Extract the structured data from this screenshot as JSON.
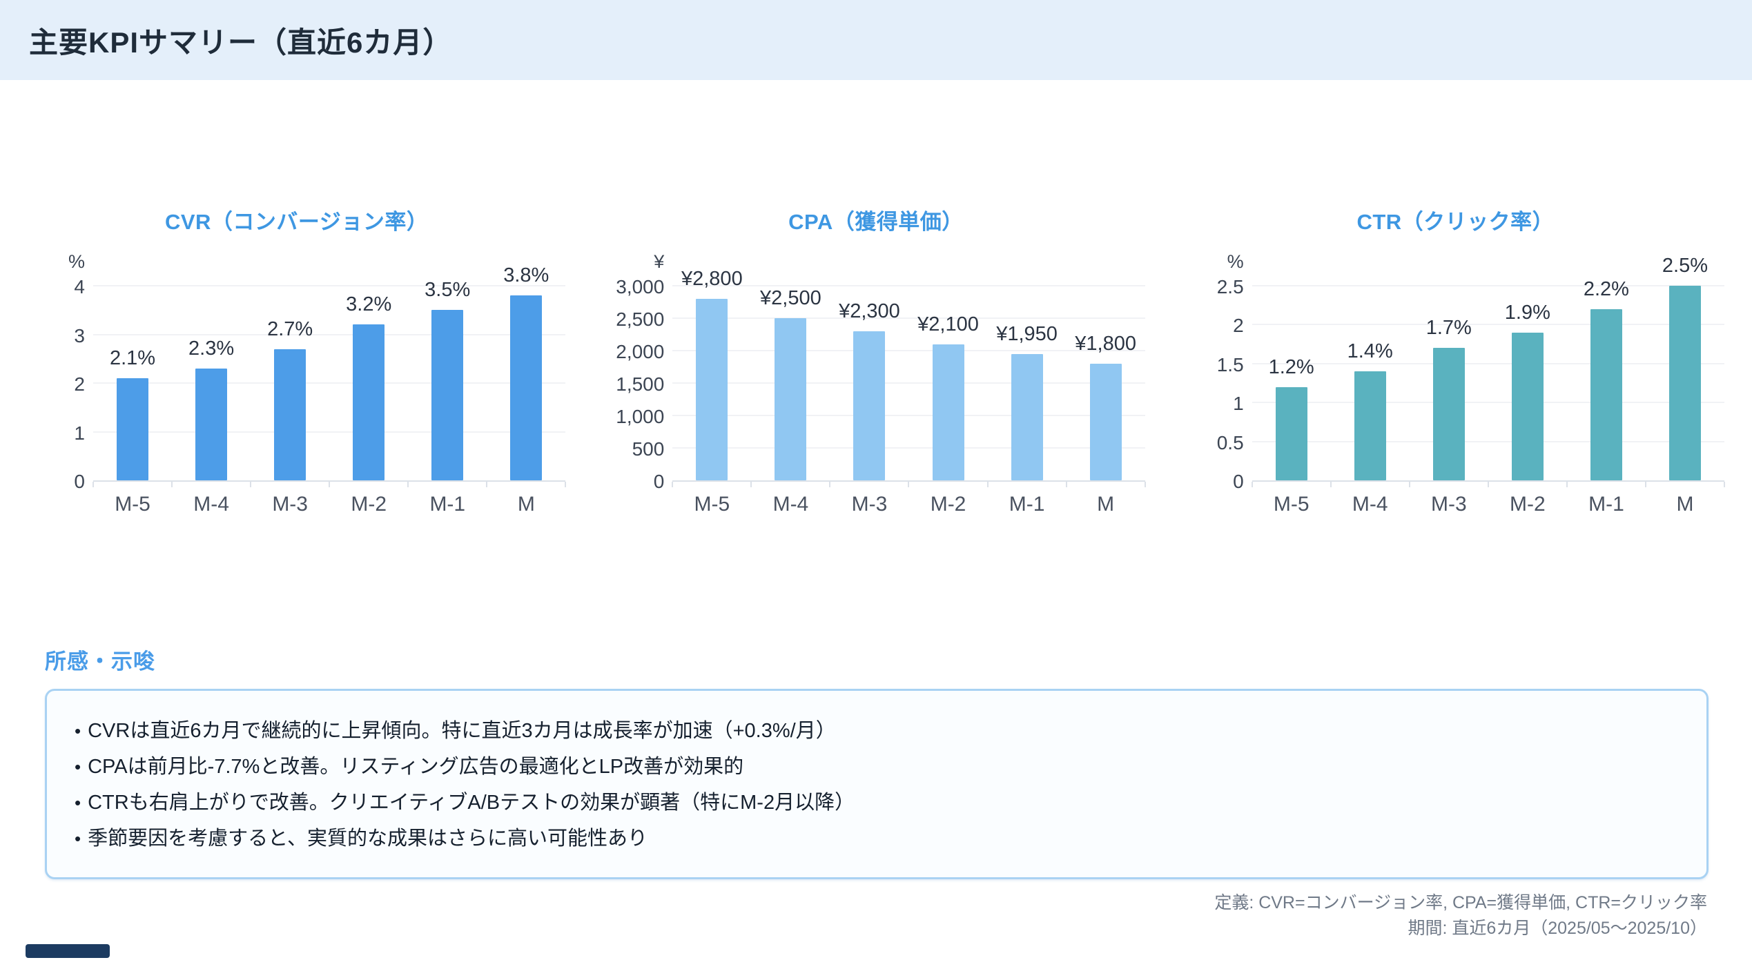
{
  "header": {
    "title": "主要KPIサマリー（直近6カ月）"
  },
  "chart_data": [
    {
      "type": "bar",
      "title": "CVR（コンバージョン率）",
      "unit": "%",
      "categories": [
        "M-5",
        "M-4",
        "M-3",
        "M-2",
        "M-1",
        "M"
      ],
      "values": [
        2.1,
        2.3,
        2.7,
        3.2,
        3.5,
        3.8
      ],
      "value_labels": [
        "2.1%",
        "2.3%",
        "2.7%",
        "3.2%",
        "3.5%",
        "3.8%"
      ],
      "ticks": [
        0,
        1,
        2,
        3,
        4
      ],
      "tick_labels": [
        "0",
        "1",
        "2",
        "3",
        "4"
      ],
      "ylim": [
        0,
        4
      ],
      "grid": true,
      "bar_color": "#4d9de8",
      "title_color": "#3e97e2"
    },
    {
      "type": "bar",
      "title": "CPA（獲得単価）",
      "unit": "¥",
      "categories": [
        "M-5",
        "M-4",
        "M-3",
        "M-2",
        "M-1",
        "M"
      ],
      "values": [
        2800,
        2500,
        2300,
        2100,
        1950,
        1800
      ],
      "value_labels": [
        "¥2,800",
        "¥2,500",
        "¥2,300",
        "¥2,100",
        "¥1,950",
        "¥1,800"
      ],
      "ticks": [
        0,
        500,
        1000,
        1500,
        2000,
        2500,
        3000
      ],
      "tick_labels": [
        "0",
        "500",
        "1,000",
        "1,500",
        "2,000",
        "2,500",
        "3,000"
      ],
      "ylim": [
        0,
        3000
      ],
      "grid": true,
      "bar_color": "#90c7f2",
      "title_color": "#3e97e2"
    },
    {
      "type": "bar",
      "title": "CTR（クリック率）",
      "unit": "%",
      "categories": [
        "M-5",
        "M-4",
        "M-3",
        "M-2",
        "M-1",
        "M"
      ],
      "values": [
        1.2,
        1.4,
        1.7,
        1.9,
        2.2,
        2.5
      ],
      "value_labels": [
        "1.2%",
        "1.4%",
        "1.7%",
        "1.9%",
        "2.2%",
        "2.5%"
      ],
      "ticks": [
        0,
        0.5,
        1,
        1.5,
        2,
        2.5
      ],
      "tick_labels": [
        "0",
        "0.5",
        "1",
        "1.5",
        "2",
        "2.5"
      ],
      "ylim": [
        0,
        2.5
      ],
      "grid": true,
      "bar_color": "#5ab2bf",
      "title_color": "#3e97e2"
    }
  ],
  "insights": {
    "heading": "所感・示唆",
    "bullet_char": "•",
    "bullets": [
      "CVRは直近6カ月で継続的に上昇傾向。特に直近3カ月は成長率が加速（+0.3%/月）",
      "CPAは前月比-7.7%と改善。リスティング広告の最適化とLP改善が効果的",
      "CTRも右肩上がりで改善。クリエイティブA/Bテストの効果が顕著（特にM-2月以降）",
      "季節要因を考慮すると、実質的な成果はさらに高い可能性あり"
    ]
  },
  "footer": {
    "definition": "定義: CVR=コンバージョン率, CPA=獲得単価, CTR=クリック率",
    "period": "期間: 直近6カ月（2025/05〜2025/10）"
  },
  "colors": {
    "header_bg": "#e4effa",
    "accent_blue": "#3e97e2",
    "insights_border": "#a9d2f3",
    "partial_bar": "#1c3b61"
  }
}
